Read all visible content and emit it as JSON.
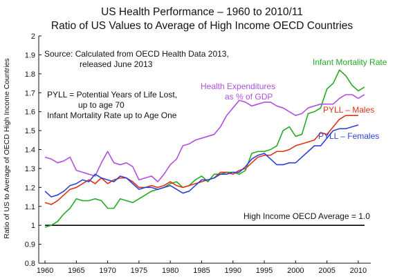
{
  "chart_data": {
    "type": "line",
    "title": "US Health Performance – 1960 to 2010/11",
    "subtitle": "Ratio of US Values to Average of High Income OECD Countries",
    "xlabel": "",
    "ylabel": "Ratio of US to Average of OECD High Income Countries",
    "xlim": [
      1959,
      2012
    ],
    "ylim": [
      0.8,
      2.0
    ],
    "x_ticks": [
      1960,
      1965,
      1970,
      1975,
      1980,
      1985,
      1990,
      1995,
      2000,
      2005,
      2010
    ],
    "y_ticks": [
      0.8,
      0.9,
      1,
      1.1,
      1.2,
      1.3,
      1.4,
      1.5,
      1.6,
      1.7,
      1.8,
      1.9,
      2
    ],
    "grid": false,
    "reference_line": {
      "label": "High Income OECD Average = 1.0",
      "value": 1.0,
      "color": "#000000"
    },
    "notes": {
      "source_line1": "Source:  Calculated from OECD Health Data 2013,",
      "source_line2": "released June 2013",
      "pyll_line1": "PYLL = Potential Years of Life Lost,",
      "pyll_line2": "up to age 70",
      "imr_line": "Infant Mortality Rate up to Age One"
    },
    "series": [
      {
        "name": "Infant Mortality Rate",
        "color": "#22aa22",
        "labels": [
          "Infant Mortality Rate"
        ],
        "x": [
          1960,
          1961,
          1962,
          1963,
          1964,
          1965,
          1966,
          1967,
          1968,
          1969,
          1970,
          1971,
          1972,
          1973,
          1974,
          1975,
          1976,
          1977,
          1978,
          1979,
          1980,
          1981,
          1982,
          1983,
          1984,
          1985,
          1986,
          1987,
          1988,
          1989,
          1990,
          1991,
          1992,
          1993,
          1994,
          1995,
          1996,
          1997,
          1998,
          1999,
          2000,
          2001,
          2002,
          2003,
          2004,
          2005,
          2006,
          2007,
          2008,
          2009,
          2010,
          2011
        ],
        "values": [
          0.99,
          1.0,
          1.02,
          1.06,
          1.09,
          1.14,
          1.13,
          1.13,
          1.14,
          1.13,
          1.09,
          1.09,
          1.14,
          1.13,
          1.12,
          1.14,
          1.16,
          1.18,
          1.19,
          1.2,
          1.22,
          1.23,
          1.2,
          1.21,
          1.24,
          1.26,
          1.23,
          1.27,
          1.27,
          1.28,
          1.28,
          1.27,
          1.29,
          1.38,
          1.39,
          1.39,
          1.4,
          1.42,
          1.5,
          1.52,
          1.47,
          1.48,
          1.59,
          1.6,
          1.62,
          1.72,
          1.75,
          1.82,
          1.79,
          1.74,
          1.71,
          1.73
        ]
      },
      {
        "name": "Health Expenditures as % of GDP",
        "color": "#b04ee0",
        "labels": [
          "Health Expenditures",
          "as % of GDP"
        ],
        "x": [
          1960,
          1961,
          1962,
          1963,
          1964,
          1965,
          1966,
          1967,
          1968,
          1969,
          1970,
          1971,
          1972,
          1973,
          1974,
          1975,
          1976,
          1977,
          1978,
          1979,
          1980,
          1981,
          1982,
          1983,
          1984,
          1985,
          1986,
          1987,
          1988,
          1989,
          1990,
          1991,
          1992,
          1993,
          1994,
          1995,
          1996,
          1997,
          1998,
          1999,
          2000,
          2001,
          2002,
          2003,
          2004,
          2005,
          2006,
          2007,
          2008,
          2009,
          2010,
          2011
        ],
        "values": [
          1.36,
          1.35,
          1.33,
          1.34,
          1.36,
          1.29,
          1.28,
          1.27,
          1.26,
          1.33,
          1.39,
          1.33,
          1.32,
          1.33,
          1.31,
          1.24,
          1.25,
          1.26,
          1.23,
          1.27,
          1.32,
          1.35,
          1.42,
          1.43,
          1.45,
          1.46,
          1.47,
          1.48,
          1.52,
          1.58,
          1.62,
          1.66,
          1.65,
          1.63,
          1.64,
          1.65,
          1.65,
          1.63,
          1.62,
          1.6,
          1.58,
          1.59,
          1.62,
          1.63,
          1.64,
          1.64,
          1.64,
          1.67,
          1.69,
          1.69,
          1.67,
          1.69
        ]
      },
      {
        "name": "PYLL – Males",
        "color": "#e03010",
        "labels": [
          "PYLL – Males"
        ],
        "x": [
          1960,
          1961,
          1962,
          1963,
          1964,
          1965,
          1966,
          1967,
          1968,
          1969,
          1970,
          1971,
          1972,
          1973,
          1974,
          1975,
          1976,
          1977,
          1978,
          1979,
          1980,
          1981,
          1982,
          1983,
          1984,
          1985,
          1986,
          1987,
          1988,
          1989,
          1990,
          1991,
          1992,
          1993,
          1994,
          1995,
          1996,
          1997,
          1998,
          1999,
          2000,
          2001,
          2002,
          2003,
          2004,
          2005,
          2006,
          2007,
          2008,
          2009,
          2010
        ],
        "values": [
          1.12,
          1.11,
          1.13,
          1.16,
          1.19,
          1.2,
          1.22,
          1.24,
          1.22,
          1.25,
          1.22,
          1.24,
          1.25,
          1.25,
          1.23,
          1.2,
          1.2,
          1.21,
          1.2,
          1.21,
          1.23,
          1.21,
          1.2,
          1.21,
          1.22,
          1.23,
          1.24,
          1.25,
          1.28,
          1.28,
          1.27,
          1.29,
          1.3,
          1.33,
          1.36,
          1.37,
          1.37,
          1.39,
          1.39,
          1.4,
          1.42,
          1.43,
          1.44,
          1.45,
          1.49,
          1.48,
          1.52,
          1.56,
          1.58,
          1.58,
          1.58
        ]
      },
      {
        "name": "PYLL – Females",
        "color": "#2b3fd8",
        "labels": [
          "PYLL – Females"
        ],
        "x": [
          1960,
          1961,
          1962,
          1963,
          1964,
          1965,
          1966,
          1967,
          1968,
          1969,
          1970,
          1971,
          1972,
          1973,
          1974,
          1975,
          1976,
          1977,
          1978,
          1979,
          1980,
          1981,
          1982,
          1983,
          1984,
          1985,
          1986,
          1987,
          1988,
          1989,
          1990,
          1991,
          1992,
          1993,
          1994,
          1995,
          1996,
          1997,
          1998,
          1999,
          2000,
          2001,
          2002,
          2003,
          2004,
          2005,
          2006,
          2007,
          2008,
          2009,
          2010
        ],
        "values": [
          1.18,
          1.15,
          1.16,
          1.18,
          1.21,
          1.22,
          1.24,
          1.23,
          1.27,
          1.25,
          1.24,
          1.23,
          1.26,
          1.25,
          1.22,
          1.19,
          1.2,
          1.2,
          1.19,
          1.2,
          1.21,
          1.19,
          1.17,
          1.18,
          1.21,
          1.24,
          1.24,
          1.25,
          1.27,
          1.27,
          1.28,
          1.28,
          1.31,
          1.35,
          1.37,
          1.38,
          1.35,
          1.32,
          1.32,
          1.33,
          1.33,
          1.36,
          1.39,
          1.42,
          1.42,
          1.46,
          1.5,
          1.51,
          1.51,
          1.52,
          1.53
        ]
      }
    ]
  }
}
